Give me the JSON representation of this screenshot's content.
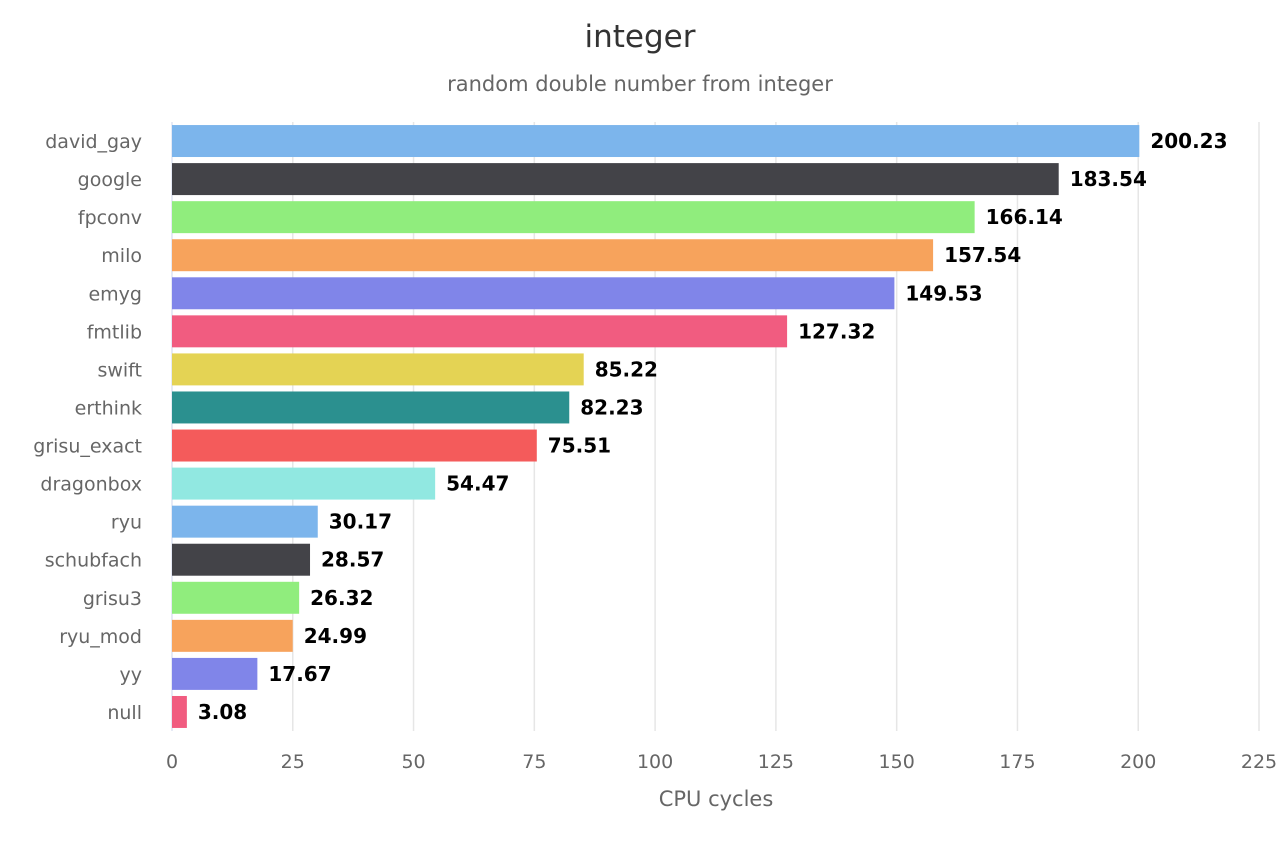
{
  "chart_data": {
    "type": "bar",
    "orientation": "horizontal",
    "title": "integer",
    "subtitle": "random double number from integer",
    "xlabel": "CPU cycles",
    "ylabel": "",
    "xlim": [
      0,
      225
    ],
    "ticks": [
      0,
      25,
      50,
      75,
      100,
      125,
      150,
      175,
      200,
      225
    ],
    "tick_labels": [
      "0",
      "25",
      "50",
      "75",
      "100",
      "125",
      "150",
      "175",
      "200",
      "225"
    ],
    "grid": true,
    "legend": false,
    "categories": [
      "david_gay",
      "google",
      "fpconv",
      "milo",
      "emyg",
      "fmtlib",
      "swift",
      "erthink",
      "grisu_exact",
      "dragonbox",
      "ryu",
      "schubfach",
      "grisu3",
      "ryu_mod",
      "yy",
      "null"
    ],
    "values": [
      200.23,
      183.54,
      166.14,
      157.54,
      149.53,
      127.32,
      85.22,
      82.23,
      75.51,
      54.47,
      30.17,
      28.57,
      26.32,
      24.99,
      17.67,
      3.08
    ],
    "value_labels": [
      "200.23",
      "183.54",
      "166.14",
      "157.54",
      "149.53",
      "127.32",
      "85.22",
      "82.23",
      "75.51",
      "54.47",
      "30.17",
      "28.57",
      "26.32",
      "24.99",
      "17.67",
      "3.08"
    ],
    "colors": [
      "#7cb5ec",
      "#434348",
      "#90ed7d",
      "#f7a35c",
      "#8085e9",
      "#f15c80",
      "#e4d354",
      "#2b908f",
      "#f45b5b",
      "#91e8e1",
      "#7cb5ec",
      "#434348",
      "#90ed7d",
      "#f7a35c",
      "#8085e9",
      "#f15c80"
    ]
  }
}
